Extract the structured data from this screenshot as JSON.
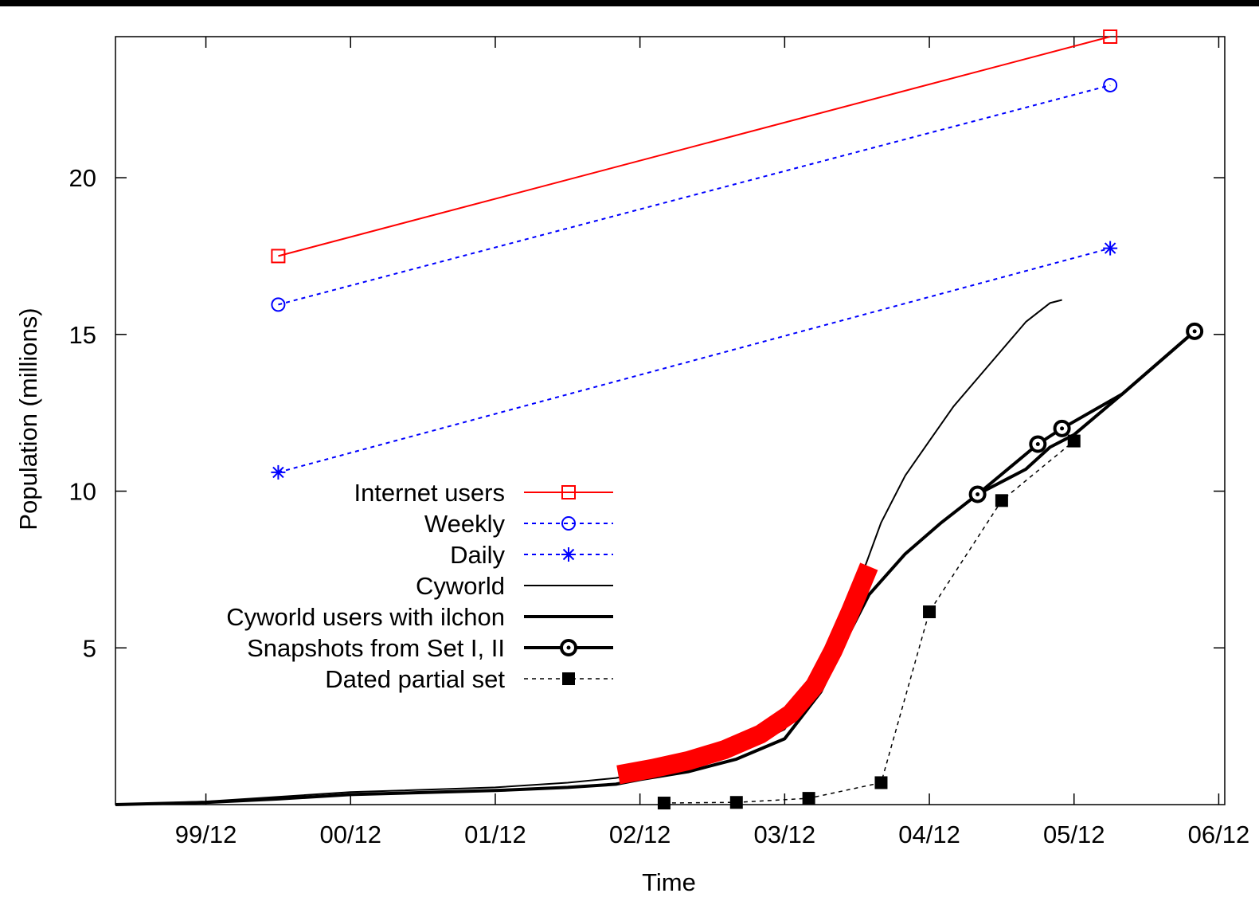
{
  "chart_data": {
    "type": "line",
    "title": "",
    "xlabel": "Time",
    "ylabel": "Population (millions)",
    "x_axis_unit": "months since 1999-12",
    "xlim": [
      -7.5,
      84.5
    ],
    "ylim": [
      0,
      24.5
    ],
    "x_ticks": [
      {
        "x": 0,
        "label": "99/12"
      },
      {
        "x": 12,
        "label": "00/12"
      },
      {
        "x": 24,
        "label": "01/12"
      },
      {
        "x": 36,
        "label": "02/12"
      },
      {
        "x": 48,
        "label": "03/12"
      },
      {
        "x": 60,
        "label": "04/12"
      },
      {
        "x": 72,
        "label": "05/12"
      },
      {
        "x": 84,
        "label": "06/12"
      }
    ],
    "y_ticks": [
      {
        "y": 5,
        "label": "5"
      },
      {
        "y": 10,
        "label": "10"
      },
      {
        "y": 15,
        "label": "15"
      },
      {
        "y": 20,
        "label": "20"
      }
    ],
    "legend_position": "center-left",
    "grid": false,
    "series": [
      {
        "name": "Internet users",
        "color": "#ff0000",
        "line_style": "solid",
        "marker": "square-open",
        "line_width": 2,
        "points": [
          [
            6,
            17.5
          ],
          [
            75,
            24.5
          ]
        ]
      },
      {
        "name": "Weekly",
        "color": "#0000ff",
        "line_style": "dotted",
        "marker": "circle-open",
        "line_width": 2,
        "points": [
          [
            6,
            15.95
          ],
          [
            75,
            22.95
          ]
        ]
      },
      {
        "name": "Daily",
        "color": "#0000ff",
        "line_style": "dotted",
        "marker": "asterisk",
        "line_width": 2,
        "points": [
          [
            6,
            10.6
          ],
          [
            75,
            17.75
          ]
        ]
      },
      {
        "name": "Cyworld",
        "color": "#000000",
        "line_style": "solid",
        "marker": "none",
        "line_width": 2,
        "points": [
          [
            -7.5,
            0.0
          ],
          [
            0,
            0.1
          ],
          [
            6,
            0.25
          ],
          [
            12,
            0.4
          ],
          [
            24,
            0.55
          ],
          [
            30,
            0.7
          ],
          [
            34,
            0.85
          ],
          [
            36,
            1.0
          ],
          [
            40,
            1.25
          ],
          [
            44,
            1.65
          ],
          [
            48,
            2.4
          ],
          [
            51,
            4.0
          ],
          [
            54,
            6.9
          ],
          [
            56,
            9.0
          ],
          [
            58,
            10.5
          ],
          [
            60,
            11.6
          ],
          [
            62,
            12.7
          ],
          [
            64,
            13.6
          ],
          [
            66,
            14.5
          ],
          [
            68,
            15.4
          ],
          [
            70,
            16.0
          ],
          [
            71,
            16.1
          ]
        ]
      },
      {
        "name": "Cyworld users with ilchon",
        "color": "#000000",
        "line_style": "solid",
        "marker": "none",
        "line_width": 4,
        "points": [
          [
            -7.5,
            0.0
          ],
          [
            0,
            0.07
          ],
          [
            6,
            0.18
          ],
          [
            12,
            0.32
          ],
          [
            24,
            0.45
          ],
          [
            30,
            0.55
          ],
          [
            34,
            0.65
          ],
          [
            36,
            0.8
          ],
          [
            40,
            1.05
          ],
          [
            44,
            1.45
          ],
          [
            48,
            2.1
          ],
          [
            51,
            3.6
          ],
          [
            53,
            5.2
          ],
          [
            55,
            6.7
          ],
          [
            58,
            8.0
          ],
          [
            61,
            9.0
          ],
          [
            64,
            9.9
          ],
          [
            68,
            10.7
          ],
          [
            70,
            11.4
          ],
          [
            72,
            11.8
          ],
          [
            76,
            13.1
          ],
          [
            82,
            15.1
          ]
        ]
      },
      {
        "name": "Snapshots from Set I, II",
        "color": "#000000",
        "line_style": "solid",
        "marker": "circle-dot",
        "line_width": 4,
        "points": [
          [
            64,
            9.9
          ],
          [
            69,
            11.5
          ],
          [
            71,
            12.0
          ],
          [
            76,
            13.1
          ],
          [
            82,
            15.1
          ]
        ],
        "marked_points": [
          [
            64,
            9.9
          ],
          [
            69,
            11.5
          ],
          [
            71,
            12.0
          ],
          [
            82,
            15.1
          ]
        ]
      },
      {
        "name": "Dated partial set",
        "color": "#000000",
        "line_style": "dotted",
        "marker": "square-filled",
        "line_width": 1.5,
        "points": [
          [
            38,
            0.05
          ],
          [
            44,
            0.07
          ],
          [
            50,
            0.2
          ],
          [
            56,
            0.7
          ],
          [
            60,
            6.15
          ],
          [
            66,
            9.7
          ],
          [
            72,
            11.6
          ]
        ]
      }
    ],
    "annotations": [
      {
        "type": "highlight-curve",
        "color": "#ff0000",
        "description": "",
        "points": [
          [
            34.2,
            0.95
          ],
          [
            37,
            1.15
          ],
          [
            40,
            1.4
          ],
          [
            43,
            1.75
          ],
          [
            46,
            2.25
          ],
          [
            48.5,
            2.9
          ],
          [
            50.5,
            3.8
          ],
          [
            52,
            4.9
          ],
          [
            53.5,
            6.2
          ],
          [
            55,
            7.6
          ]
        ]
      }
    ]
  }
}
